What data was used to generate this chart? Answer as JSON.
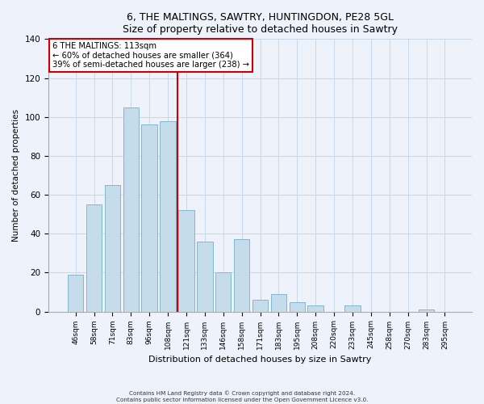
{
  "title1": "6, THE MALTINGS, SAWTRY, HUNTINGDON, PE28 5GL",
  "title2": "Size of property relative to detached houses in Sawtry",
  "xlabel": "Distribution of detached houses by size in Sawtry",
  "ylabel": "Number of detached properties",
  "categories": [
    "46sqm",
    "58sqm",
    "71sqm",
    "83sqm",
    "96sqm",
    "108sqm",
    "121sqm",
    "133sqm",
    "146sqm",
    "158sqm",
    "171sqm",
    "183sqm",
    "195sqm",
    "208sqm",
    "220sqm",
    "233sqm",
    "245sqm",
    "258sqm",
    "270sqm",
    "283sqm",
    "295sqm"
  ],
  "values": [
    19,
    55,
    65,
    105,
    96,
    98,
    52,
    36,
    20,
    37,
    6,
    9,
    5,
    3,
    0,
    3,
    0,
    0,
    0,
    1,
    0
  ],
  "bar_color": "#c5dcea",
  "bar_edge_color": "#85b5cf",
  "vline_x_index": 5.5,
  "vline_color": "#cc0000",
  "annotation_line1": "6 THE MALTINGS: 113sqm",
  "annotation_line2": "← 60% of detached houses are smaller (364)",
  "annotation_line3": "39% of semi-detached houses are larger (238) →",
  "ylim": [
    0,
    140
  ],
  "yticks": [
    0,
    20,
    40,
    60,
    80,
    100,
    120,
    140
  ],
  "footer1": "Contains HM Land Registry data © Crown copyright and database right 2024.",
  "footer2": "Contains public sector information licensed under the Open Government Licence v3.0.",
  "bg_color": "#eef2fa",
  "plot_bg_color": "#eef2fa",
  "grid_color": "#c8d8e8"
}
